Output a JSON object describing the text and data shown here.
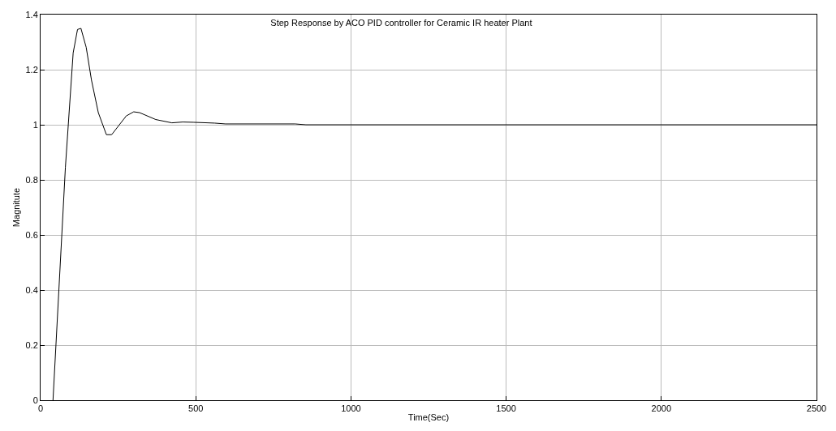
{
  "chart_data": {
    "type": "line",
    "title": "Step Response by ACO PID controller for Ceramic IR heater Plant",
    "xlabel": "Time(Sec)",
    "ylabel": "Magnitute",
    "x": [
      40,
      80,
      105,
      119,
      130,
      147,
      164,
      186,
      212,
      229,
      276,
      300,
      319,
      371,
      423,
      458,
      492,
      561,
      596,
      820,
      855,
      2500
    ],
    "series": [
      {
        "color": "#000000",
        "values": [
          0,
          0.846,
          1.261,
          1.346,
          1.35,
          1.281,
          1.162,
          1.044,
          0.964,
          0.964,
          1.032,
          1.047,
          1.044,
          1.019,
          1.007,
          1.01,
          1.009,
          1.006,
          1.003,
          1.003,
          1.0,
          1.0
        ]
      }
    ],
    "xlim": [
      0,
      2500
    ],
    "xticks": [
      0,
      500,
      1000,
      1500,
      2000,
      2500
    ],
    "ylim": [
      0,
      1.4
    ],
    "yticks": [
      0,
      0.2,
      0.4,
      0.6,
      0.8,
      1,
      1.2,
      1.4
    ],
    "grid": true,
    "marker": "none",
    "line_style": "solid"
  }
}
